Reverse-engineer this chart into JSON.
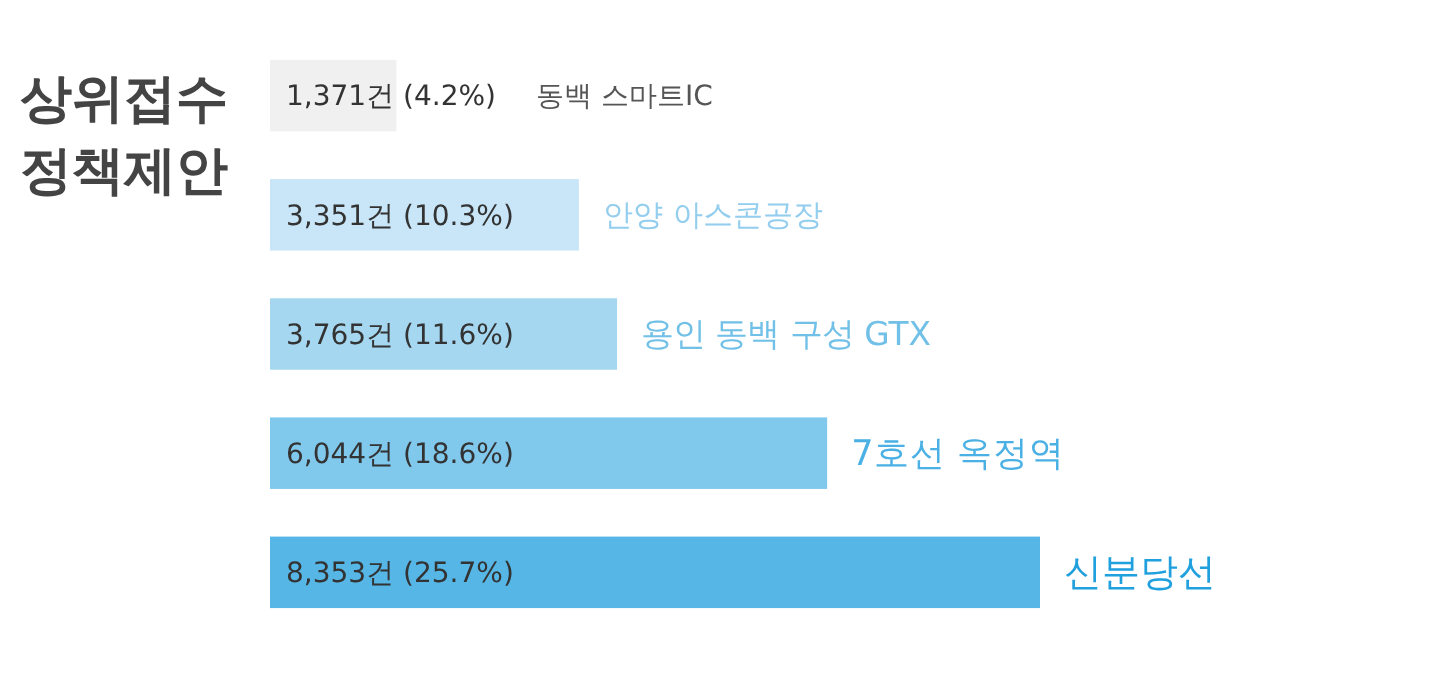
{
  "chart_data": {
    "type": "bar",
    "orientation": "horizontal",
    "title": "상위접수 정책제안",
    "categories": [
      "동백 스마트IC",
      "안양 아스콘공장",
      "용인 동백 구성 GTX",
      "7호선 옥정역",
      "신분당선"
    ],
    "values": [
      1371,
      3351,
      3765,
      6044,
      8353
    ],
    "colors": [
      "#f0f0f0",
      "#c8e6f7",
      "#a5d7f0",
      "#80c8ec",
      "#56b7e6"
    ],
    "value_labels": [
      "1,371건 (4.2%)",
      "3,351건 (10.3%)",
      "3,765건 (11.6%)",
      "6,044건 (18.6%)",
      "8,353건 (25.7%)"
    ]
  }
}
